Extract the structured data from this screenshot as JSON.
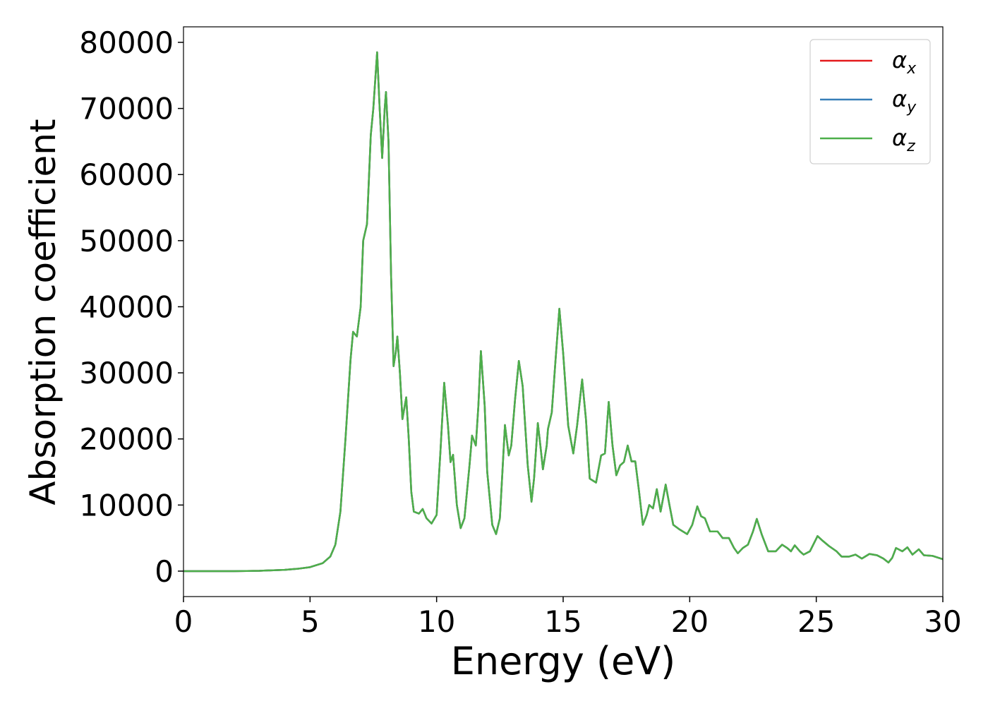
{
  "chart_data": {
    "type": "line",
    "xlabel": "Energy (eV)",
    "ylabel": "Absorption coefficient",
    "xlim": [
      0,
      30
    ],
    "ylim": [
      -3850,
      82350
    ],
    "xticks": [
      0,
      5,
      10,
      15,
      20,
      25,
      30
    ],
    "yticks": [
      0,
      10000,
      20000,
      30000,
      40000,
      50000,
      60000,
      70000,
      80000
    ],
    "legend": "upper right",
    "x": [
      0,
      2,
      3,
      4,
      4.5,
      5,
      5.5,
      5.8,
      6.0,
      6.2,
      6.4,
      6.6,
      6.7,
      6.85,
      7.0,
      7.1,
      7.25,
      7.4,
      7.5,
      7.65,
      7.75,
      7.85,
      7.95,
      8.0,
      8.1,
      8.2,
      8.3,
      8.4,
      8.45,
      8.55,
      8.65,
      8.8,
      8.9,
      9.0,
      9.1,
      9.3,
      9.45,
      9.6,
      9.8,
      10.0,
      10.15,
      10.3,
      10.45,
      10.55,
      10.65,
      10.8,
      10.95,
      11.1,
      11.3,
      11.4,
      11.55,
      11.65,
      11.75,
      11.9,
      12.0,
      12.2,
      12.35,
      12.5,
      12.6,
      12.7,
      12.85,
      12.95,
      13.1,
      13.25,
      13.4,
      13.6,
      13.75,
      13.85,
      14.0,
      14.1,
      14.2,
      14.35,
      14.4,
      14.55,
      14.7,
      14.85,
      15.0,
      15.2,
      15.4,
      15.55,
      15.75,
      15.9,
      16.05,
      16.3,
      16.5,
      16.65,
      16.8,
      16.95,
      17.1,
      17.25,
      17.4,
      17.55,
      17.7,
      17.85,
      18.0,
      18.15,
      18.3,
      18.4,
      18.55,
      18.7,
      18.85,
      19.05,
      19.2,
      19.35,
      19.6,
      19.9,
      20.1,
      20.3,
      20.45,
      20.6,
      20.8,
      21.1,
      21.3,
      21.55,
      21.75,
      21.9,
      22.1,
      22.3,
      22.5,
      22.65,
      22.85,
      23.1,
      23.4,
      23.65,
      23.85,
      24.0,
      24.15,
      24.35,
      24.5,
      24.75,
      25.05,
      25.25,
      25.5,
      25.8,
      26.0,
      26.3,
      26.55,
      26.8,
      27.1,
      27.4,
      27.65,
      27.85,
      28.0,
      28.15,
      28.4,
      28.6,
      28.8,
      29.05,
      29.25,
      29.6,
      30.0
    ],
    "series": [
      {
        "name": "αx",
        "color": "#e41a1c",
        "values": [
          0,
          0,
          50,
          200,
          350,
          600,
          1200,
          2200,
          4000,
          9000,
          20000,
          32000,
          36200,
          35500,
          40000,
          50000,
          52500,
          66000,
          70000,
          78500,
          70000,
          62500,
          70000,
          72500,
          65000,
          45000,
          31000,
          33500,
          35500,
          30000,
          23000,
          26300,
          20000,
          12000,
          9000,
          8700,
          9400,
          8000,
          7200,
          8500,
          18000,
          28500,
          22000,
          16500,
          17600,
          10000,
          6500,
          8000,
          16000,
          20500,
          19000,
          25000,
          33300,
          25000,
          15000,
          7000,
          5600,
          8000,
          15000,
          22100,
          17500,
          19000,
          26000,
          31800,
          28000,
          16000,
          10500,
          14000,
          22400,
          19000,
          15400,
          19000,
          21500,
          24000,
          32000,
          39700,
          33000,
          22000,
          17800,
          22000,
          29000,
          23000,
          14000,
          13400,
          17500,
          17800,
          25600,
          19000,
          14500,
          16000,
          16500,
          19000,
          16600,
          16600,
          12000,
          7000,
          8500,
          10000,
          9500,
          12400,
          9000,
          13100,
          10000,
          7000,
          6300,
          5600,
          7000,
          9800,
          8300,
          8000,
          6000,
          6000,
          5000,
          5000,
          3500,
          2700,
          3500,
          4000,
          6000,
          7900,
          5500,
          3000,
          3000,
          4000,
          3500,
          3000,
          3900,
          3000,
          2500,
          3000,
          5300,
          4600,
          3800,
          3000,
          2200,
          2200,
          2500,
          1900,
          2600,
          2400,
          1900,
          1300,
          2000,
          3500,
          3000,
          3600,
          2500,
          3300,
          2400,
          2300,
          1800
        ]
      },
      {
        "name": "αy",
        "color": "#377eb8",
        "values": [
          0,
          0,
          50,
          200,
          350,
          600,
          1200,
          2200,
          4000,
          9000,
          20000,
          32000,
          36200,
          35500,
          40000,
          50000,
          52500,
          66000,
          70000,
          78500,
          70000,
          62500,
          70000,
          72500,
          65000,
          45000,
          31000,
          33500,
          35500,
          30000,
          23000,
          26300,
          20000,
          12000,
          9000,
          8700,
          9400,
          8000,
          7200,
          8500,
          18000,
          28500,
          22000,
          16500,
          17600,
          10000,
          6500,
          8000,
          16000,
          20500,
          19000,
          25000,
          33300,
          25000,
          15000,
          7000,
          5600,
          8000,
          15000,
          22100,
          17500,
          19000,
          26000,
          31800,
          28000,
          16000,
          10500,
          14000,
          22400,
          19000,
          15400,
          19000,
          21500,
          24000,
          32000,
          39700,
          33000,
          22000,
          17800,
          22000,
          29000,
          23000,
          14000,
          13400,
          17500,
          17800,
          25600,
          19000,
          14500,
          16000,
          16500,
          19000,
          16600,
          16600,
          12000,
          7000,
          8500,
          10000,
          9500,
          12400,
          9000,
          13100,
          10000,
          7000,
          6300,
          5600,
          7000,
          9800,
          8300,
          8000,
          6000,
          6000,
          5000,
          5000,
          3500,
          2700,
          3500,
          4000,
          6000,
          7900,
          5500,
          3000,
          3000,
          4000,
          3500,
          3000,
          3900,
          3000,
          2500,
          3000,
          5300,
          4600,
          3800,
          3000,
          2200,
          2200,
          2500,
          1900,
          2600,
          2400,
          1900,
          1300,
          2000,
          3500,
          3000,
          3600,
          2500,
          3300,
          2400,
          2300,
          1800
        ]
      },
      {
        "name": "αz",
        "color": "#4daf4a",
        "values": [
          0,
          0,
          50,
          200,
          350,
          600,
          1200,
          2200,
          4000,
          9000,
          20000,
          32000,
          36200,
          35500,
          40000,
          50000,
          52500,
          66000,
          70000,
          78500,
          70000,
          62500,
          70000,
          72500,
          65000,
          45000,
          31000,
          33500,
          35500,
          30000,
          23000,
          26300,
          20000,
          12000,
          9000,
          8700,
          9400,
          8000,
          7200,
          8500,
          18000,
          28500,
          22000,
          16500,
          17600,
          10000,
          6500,
          8000,
          16000,
          20500,
          19000,
          25000,
          33300,
          25000,
          15000,
          7000,
          5600,
          8000,
          15000,
          22100,
          17500,
          19000,
          26000,
          31800,
          28000,
          16000,
          10500,
          14000,
          22400,
          19000,
          15400,
          19000,
          21500,
          24000,
          32000,
          39700,
          33000,
          22000,
          17800,
          22000,
          29000,
          23000,
          14000,
          13400,
          17500,
          17800,
          25600,
          19000,
          14500,
          16000,
          16500,
          19000,
          16600,
          16600,
          12000,
          7000,
          8500,
          10000,
          9500,
          12400,
          9000,
          13100,
          10000,
          7000,
          6300,
          5600,
          7000,
          9800,
          8300,
          8000,
          6000,
          6000,
          5000,
          5000,
          3500,
          2700,
          3500,
          4000,
          6000,
          7900,
          5500,
          3000,
          3000,
          4000,
          3500,
          3000,
          3900,
          3000,
          2500,
          3000,
          5300,
          4600,
          3800,
          3000,
          2200,
          2200,
          2500,
          1900,
          2600,
          2400,
          1900,
          1300,
          2000,
          3500,
          3000,
          3600,
          2500,
          3300,
          2400,
          2300,
          1800
        ]
      }
    ]
  }
}
